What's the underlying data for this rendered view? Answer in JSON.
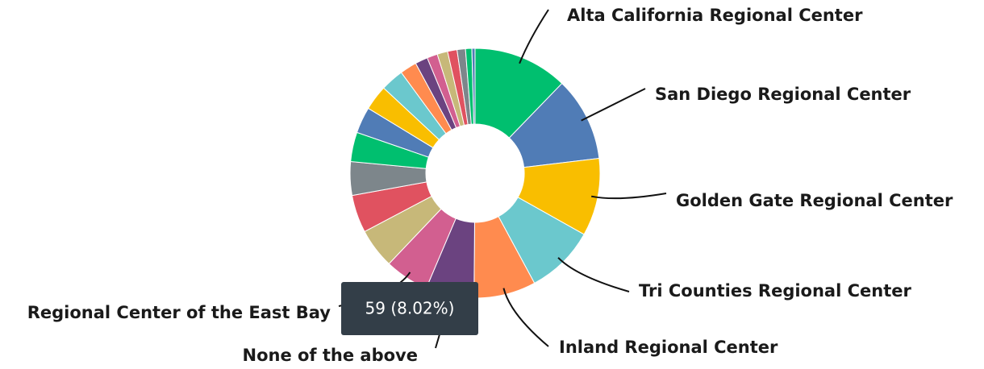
{
  "chart_data": {
    "type": "donut",
    "categories": [
      "Alta California Regional Center",
      "San Diego Regional Center",
      "Golden Gate Regional Center",
      "Tri Counties Regional Center",
      "Inland Regional Center",
      "None of the above",
      "Regional Center of the East Bay",
      null,
      null,
      null,
      null,
      null,
      null,
      null,
      null,
      null,
      null,
      null,
      null,
      null,
      null,
      null
    ],
    "values": [
      90,
      80,
      74,
      66,
      59,
      46,
      42,
      38,
      36,
      32,
      28,
      25,
      24,
      22,
      16,
      12,
      10,
      10,
      9,
      8,
      6,
      3
    ],
    "colors": [
      "#00bf6f",
      "#507cb6",
      "#f9be00",
      "#6bc8cd",
      "#ff8b4f",
      "#6b4380",
      "#d25f90",
      "#c7b879",
      "#e05260",
      "#7d868b",
      "#00bf6f",
      "#507cb6",
      "#f9be00",
      "#6bc8cd",
      "#ff8b4f",
      "#6b4380",
      "#d25f90",
      "#c7b879",
      "#e05260",
      "#7d868b",
      "#00bf6f",
      "#507cb6"
    ],
    "tooltip": "59 (8.02%)"
  }
}
